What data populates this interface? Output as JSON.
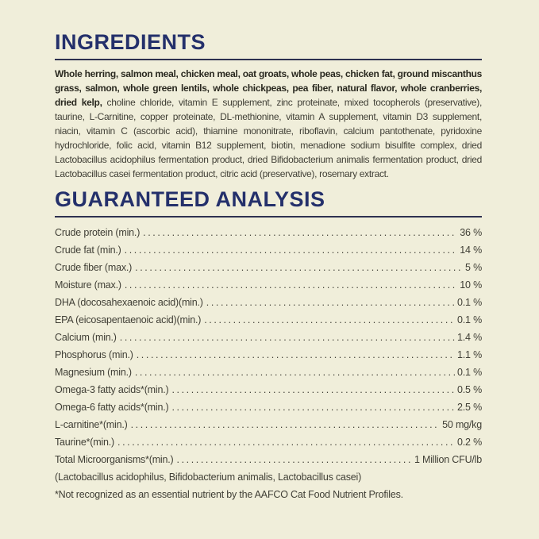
{
  "colors": {
    "background": "#f0eeda",
    "heading": "#24306b",
    "rule": "#2e3150",
    "body_text": "#403f36",
    "bold_text": "#29281f"
  },
  "ingredients": {
    "heading": "INGREDIENTS",
    "bold_text": "Whole herring, salmon meal, chicken meal, oat groats, whole peas, chicken fat, ground miscanthus grass, salmon, whole green lentils, whole chickpeas, pea fiber, natural flavor, whole cranberries, dried kelp,",
    "regular_text": "choline chloride, vitamin E supplement, zinc proteinate, mixed tocopherols (preservative), taurine, L-Carnitine, copper proteinate, DL-methionine, vitamin A supplement, vitamin D3 supplement, niacin, vitamin C (ascorbic acid), thiamine mononitrate, riboflavin, calcium pantothenate, pyridoxine hydrochloride, folic acid, vitamin B12 supplement, biotin, menadione sodium bisulfite complex, dried Lactobacillus acidophilus fermentation product, dried Bifidobacterium animalis fermentation product, dried Lactobacillus casei fermentation product, citric acid (preservative), rosemary extract."
  },
  "analysis": {
    "heading": "GUARANTEED ANALYSIS",
    "rows": [
      {
        "label": "Crude protein (min.)",
        "value": "36 %"
      },
      {
        "label": "Crude fat (min.)",
        "value": "14 %"
      },
      {
        "label": "Crude fiber (max.)",
        "value": "5 %"
      },
      {
        "label": "Moisture (max.)",
        "value": "10 %"
      },
      {
        "label": "DHA (docosahexaenoic acid)(min.)",
        "value": "0.1 %"
      },
      {
        "label": "EPA (eicosapentaenoic acid)(min.)",
        "value": "0.1 %"
      },
      {
        "label": "Calcium (min.)",
        "value": "1.4 %"
      },
      {
        "label": "Phosphorus (min.)",
        "value": "1.1 %"
      },
      {
        "label": "Magnesium (min.)",
        "value": "0.1 %"
      },
      {
        "label": "Omega-3 fatty acids*(min.)",
        "value": "0.5 %"
      },
      {
        "label": "Omega-6 fatty acids*(min.)",
        "value": "2.5 %"
      },
      {
        "label": "L-carnitine*(min.)",
        "value": "50 mg/kg"
      },
      {
        "label": "Taurine*(min.)",
        "value": "0.2 %"
      },
      {
        "label": "Total Microorganisms*(min.)",
        "value": "1 Million CFU/lb"
      }
    ],
    "subnote": "(Lactobacillus acidophilus, Bifidobacterium animalis, Lactobacillus casei)",
    "footnote": "*Not recognized as an essential nutrient by the AAFCO Cat Food Nutrient Profiles."
  }
}
